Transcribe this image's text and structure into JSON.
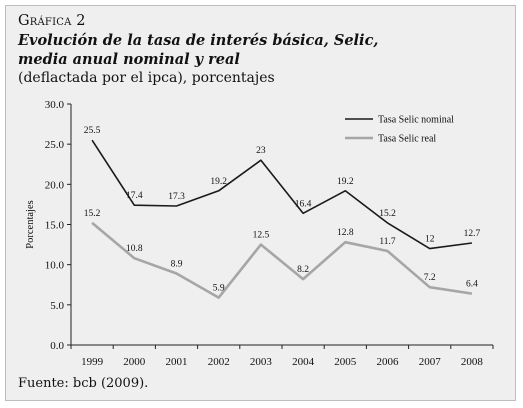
{
  "figure": {
    "label": "Gráfica 2",
    "title_line1": "Evolución de la tasa de interés básica, Selic,",
    "title_line2": "media anual nominal y real",
    "subtitle": "(deflactada por el ipca), porcentajes",
    "source": "Fuente: bcb (2009)."
  },
  "chart_data": {
    "type": "line",
    "x": [
      "1999",
      "2000",
      "2001",
      "2002",
      "2003",
      "2004",
      "2005",
      "2006",
      "2007",
      "2008"
    ],
    "series": [
      {
        "name": "Tasa Selic nominal",
        "color": "#1a1a1a",
        "values": [
          25.5,
          17.4,
          17.3,
          19.2,
          23,
          16.4,
          19.2,
          15.2,
          12,
          12.7
        ],
        "labels": [
          "25.5",
          "17.4",
          "17.3",
          "19.2",
          "23",
          "16.4",
          "19.2",
          "15.2",
          "12",
          "12.7"
        ]
      },
      {
        "name": "Tasa Selic real",
        "color": "#a6a6a6",
        "values": [
          15.2,
          10.8,
          8.9,
          5.9,
          12.5,
          8.2,
          12.8,
          11.7,
          7.2,
          6.4
        ],
        "labels": [
          "15.2",
          "10.8",
          "8.9",
          "5.9",
          "12.5",
          "8.2",
          "12.8",
          "11.7",
          "7.2",
          "6.4"
        ]
      }
    ],
    "ylabel": "Porcentajes",
    "ylim": [
      0,
      30
    ],
    "yticks": [
      "0.0",
      "5.0",
      "10.0",
      "15.0",
      "20.0",
      "25.0",
      "30.0"
    ],
    "grid": false,
    "legend": "top-right"
  }
}
